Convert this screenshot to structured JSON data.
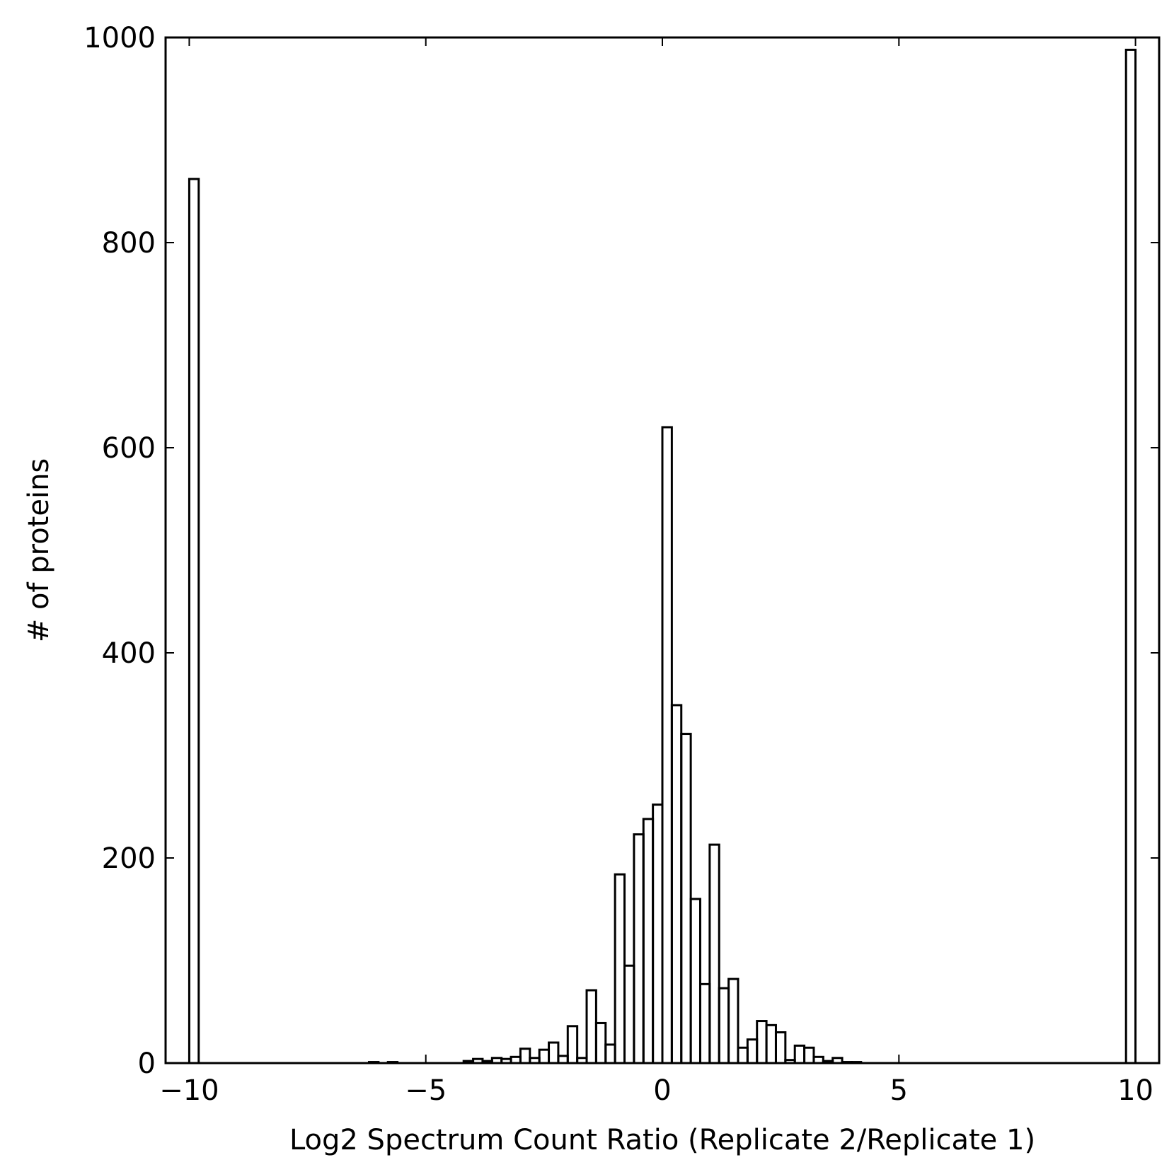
{
  "chart_data": {
    "type": "bar",
    "subtype": "histogram-step",
    "title": "",
    "xlabel": "Log2 Spectrum Count Ratio (Replicate 2/Replicate 1)",
    "ylabel": "# of proteins",
    "xlim": [
      -10.5,
      10.5
    ],
    "ylim": [
      0,
      1000
    ],
    "x_ticks": [
      -10,
      -5,
      0,
      5,
      10
    ],
    "x_tick_labels": [
      "−10",
      "−5",
      "0",
      "5",
      "10"
    ],
    "y_ticks": [
      0,
      200,
      400,
      600,
      800,
      1000
    ],
    "y_tick_labels": [
      "0",
      "200",
      "400",
      "600",
      "800",
      "1000"
    ],
    "grid": false,
    "legend": "none",
    "colors": {
      "line": "#000000",
      "fill": "none",
      "background": "#ffffff"
    },
    "series": [
      {
        "bins": [
          {
            "x0": -10.0,
            "x1": -9.8,
            "count": 862
          },
          {
            "x0": -6.2,
            "x1": -6.0,
            "count": 1
          },
          {
            "x0": -5.8,
            "x1": -5.6,
            "count": 1
          },
          {
            "x0": -4.2,
            "x1": -4.0,
            "count": 2
          },
          {
            "x0": -4.0,
            "x1": -3.8,
            "count": 4
          },
          {
            "x0": -3.8,
            "x1": -3.6,
            "count": 2
          },
          {
            "x0": -3.6,
            "x1": -3.4,
            "count": 5
          },
          {
            "x0": -3.4,
            "x1": -3.2,
            "count": 4
          },
          {
            "x0": -3.2,
            "x1": -3.0,
            "count": 6
          },
          {
            "x0": -3.0,
            "x1": -2.8,
            "count": 14
          },
          {
            "x0": -2.8,
            "x1": -2.6,
            "count": 5
          },
          {
            "x0": -2.6,
            "x1": -2.4,
            "count": 13
          },
          {
            "x0": -2.4,
            "x1": -2.2,
            "count": 20
          },
          {
            "x0": -2.2,
            "x1": -2.0,
            "count": 7
          },
          {
            "x0": -2.0,
            "x1": -1.8,
            "count": 36
          },
          {
            "x0": -1.8,
            "x1": -1.6,
            "count": 5
          },
          {
            "x0": -1.6,
            "x1": -1.4,
            "count": 71
          },
          {
            "x0": -1.4,
            "x1": -1.2,
            "count": 39
          },
          {
            "x0": -1.2,
            "x1": -1.0,
            "count": 18
          },
          {
            "x0": -1.0,
            "x1": -0.8,
            "count": 184
          },
          {
            "x0": -0.8,
            "x1": -0.6,
            "count": 95
          },
          {
            "x0": -0.6,
            "x1": -0.4,
            "count": 223
          },
          {
            "x0": -0.4,
            "x1": -0.2,
            "count": 238
          },
          {
            "x0": -0.2,
            "x1": 0.0,
            "count": 252
          },
          {
            "x0": 0.0,
            "x1": 0.2,
            "count": 620
          },
          {
            "x0": 0.2,
            "x1": 0.4,
            "count": 349
          },
          {
            "x0": 0.4,
            "x1": 0.6,
            "count": 321
          },
          {
            "x0": 0.6,
            "x1": 0.8,
            "count": 160
          },
          {
            "x0": 0.8,
            "x1": 1.0,
            "count": 77
          },
          {
            "x0": 1.0,
            "x1": 1.2,
            "count": 213
          },
          {
            "x0": 1.2,
            "x1": 1.4,
            "count": 73
          },
          {
            "x0": 1.4,
            "x1": 1.6,
            "count": 82
          },
          {
            "x0": 1.6,
            "x1": 1.8,
            "count": 15
          },
          {
            "x0": 1.8,
            "x1": 2.0,
            "count": 23
          },
          {
            "x0": 2.0,
            "x1": 2.2,
            "count": 41
          },
          {
            "x0": 2.2,
            "x1": 2.4,
            "count": 37
          },
          {
            "x0": 2.4,
            "x1": 2.6,
            "count": 30
          },
          {
            "x0": 2.6,
            "x1": 2.8,
            "count": 3
          },
          {
            "x0": 2.8,
            "x1": 3.0,
            "count": 17
          },
          {
            "x0": 3.0,
            "x1": 3.2,
            "count": 15
          },
          {
            "x0": 3.2,
            "x1": 3.4,
            "count": 6
          },
          {
            "x0": 3.4,
            "x1": 3.6,
            "count": 2
          },
          {
            "x0": 3.6,
            "x1": 3.8,
            "count": 5
          },
          {
            "x0": 3.8,
            "x1": 4.0,
            "count": 1
          },
          {
            "x0": 4.0,
            "x1": 4.2,
            "count": 1
          },
          {
            "x0": 9.8,
            "x1": 10.0,
            "count": 988
          }
        ]
      }
    ]
  }
}
